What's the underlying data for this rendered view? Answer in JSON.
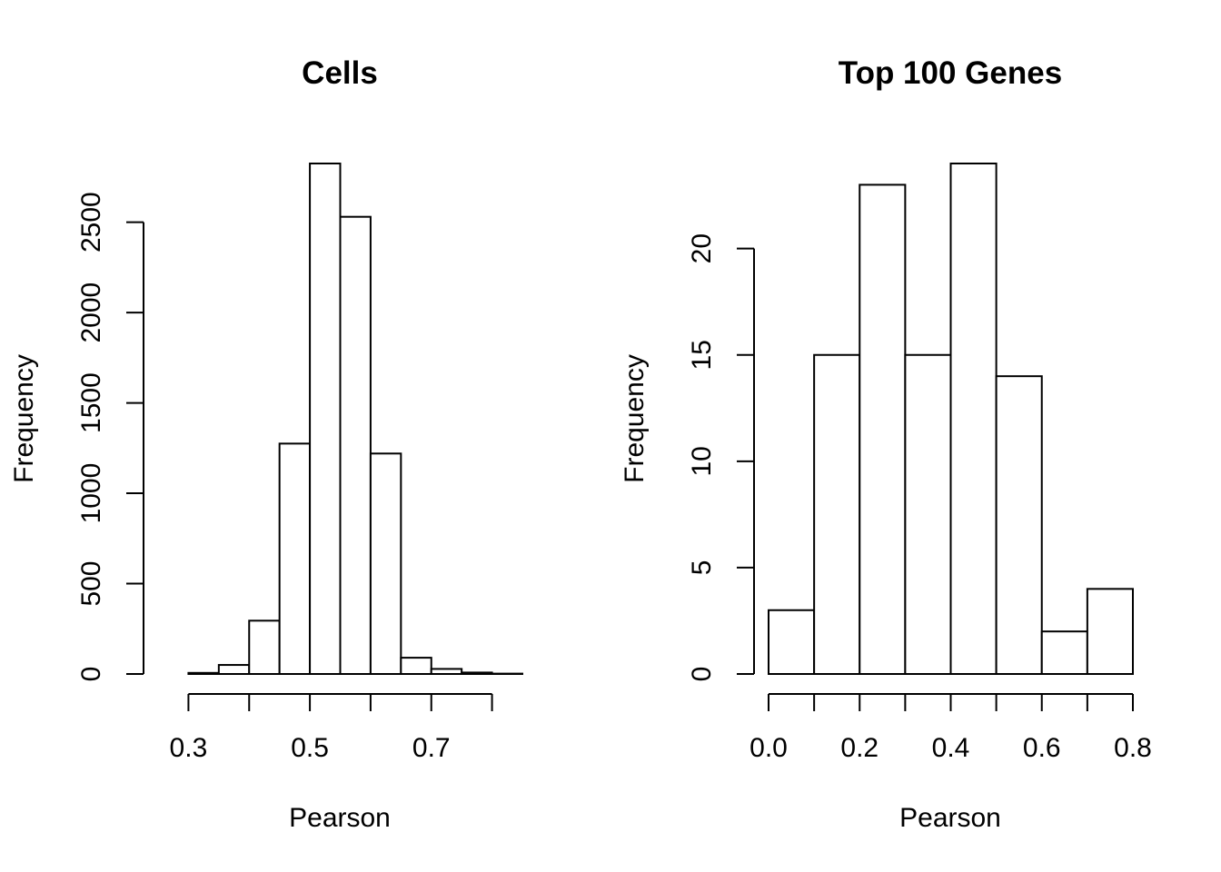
{
  "chart_data": [
    {
      "type": "bar",
      "title": "Cells",
      "xlabel": "Pearson",
      "ylabel": "Frequency",
      "bin_edges": [
        0.25,
        0.3,
        0.35,
        0.4,
        0.45,
        0.5,
        0.55,
        0.6,
        0.65,
        0.7,
        0.75,
        0.8,
        0.85
      ],
      "values": [
        0,
        6,
        50,
        295,
        1275,
        2825,
        2530,
        1220,
        90,
        28,
        8,
        2
      ],
      "xlim": [
        0.25,
        0.85
      ],
      "ylim": [
        0,
        2825
      ],
      "x_ticks": [
        0.3,
        0.4,
        0.5,
        0.6,
        0.7,
        0.8
      ],
      "x_tick_labels": [
        "0.3",
        "",
        "0.5",
        "",
        "0.7",
        ""
      ],
      "y_ticks": [
        0,
        500,
        1000,
        1500,
        2000,
        2500
      ],
      "y_tick_labels": [
        "0",
        "500",
        "1000",
        "1500",
        "2000",
        "2500"
      ],
      "grid": false
    },
    {
      "type": "bar",
      "title": "Top 100 Genes",
      "xlabel": "Pearson",
      "ylabel": "Frequency",
      "bin_edges": [
        0.0,
        0.1,
        0.2,
        0.3,
        0.4,
        0.5,
        0.6,
        0.7,
        0.8
      ],
      "values": [
        3,
        15,
        23,
        15,
        24,
        14,
        2,
        4
      ],
      "xlim": [
        0.0,
        0.8
      ],
      "ylim": [
        0,
        24
      ],
      "x_ticks": [
        0.0,
        0.1,
        0.2,
        0.3,
        0.4,
        0.5,
        0.6,
        0.7,
        0.8
      ],
      "x_tick_labels": [
        "0.0",
        "",
        "0.2",
        "",
        "0.4",
        "",
        "0.6",
        "",
        "0.8"
      ],
      "y_ticks": [
        0,
        5,
        10,
        15,
        20
      ],
      "y_tick_labels": [
        "0",
        "5",
        "10",
        "15",
        "20"
      ],
      "grid": false
    }
  ]
}
